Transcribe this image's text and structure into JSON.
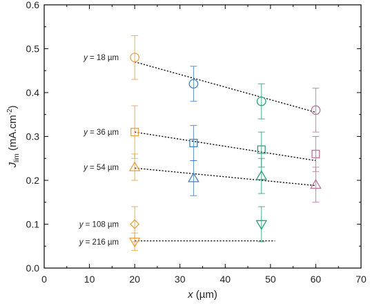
{
  "chart_data": {
    "type": "scatter",
    "xlabel": {
      "var": "x",
      "unit": "(µm)"
    },
    "ylabel": {
      "var": "J",
      "sub": "lim",
      "unit": "(mA.cm",
      "sup": "-2",
      "close": ")"
    },
    "xlim": [
      0,
      70
    ],
    "ylim": [
      0,
      0.6
    ],
    "xticks": [
      "0",
      "10",
      "20",
      "30",
      "40",
      "50",
      "60",
      "70"
    ],
    "yticks": [
      "0.0",
      "0.1",
      "0.2",
      "0.3",
      "0.4",
      "0.5",
      "0.6"
    ],
    "grid": false,
    "legend": "none",
    "x_colors": {
      "20": "#e8a33a",
      "33": "#3f7fbf",
      "48": "#2f9e7e",
      "60": "#c0709a"
    },
    "series": [
      {
        "label": {
          "var": "y",
          "text": " = 18 µm"
        },
        "marker": "circle",
        "points": [
          {
            "x": 20,
            "y": 0.48,
            "err": 0.05
          },
          {
            "x": 33,
            "y": 0.42,
            "err": 0.04
          },
          {
            "x": 48,
            "y": 0.38,
            "err": 0.04
          },
          {
            "x": 60,
            "y": 0.36,
            "err": 0.05
          }
        ],
        "fit": [
          [
            20,
            0.47
          ],
          [
            60,
            0.355
          ]
        ]
      },
      {
        "label": {
          "var": "y",
          "text": " = 36 µm"
        },
        "marker": "square",
        "points": [
          {
            "x": 20,
            "y": 0.31,
            "err": 0.06
          },
          {
            "x": 33,
            "y": 0.285,
            "err": 0.04
          },
          {
            "x": 48,
            "y": 0.27,
            "err": 0.04
          },
          {
            "x": 60,
            "y": 0.26,
            "err": 0.04
          }
        ],
        "fit": [
          [
            20,
            0.31
          ],
          [
            60,
            0.245
          ]
        ]
      },
      {
        "label": {
          "var": "y",
          "text": " = 54 µm"
        },
        "marker": "triangle-up",
        "points": [
          {
            "x": 20,
            "y": 0.23,
            "err": 0.03
          },
          {
            "x": 33,
            "y": 0.205,
            "err": 0.04
          },
          {
            "x": 48,
            "y": 0.21,
            "err": 0.04
          },
          {
            "x": 60,
            "y": 0.19,
            "err": 0.04
          }
        ],
        "fit": [
          [
            20,
            0.228
          ],
          [
            60,
            0.188
          ]
        ]
      },
      {
        "label": {
          "var": "y",
          "text": " = 108 µm"
        },
        "marker": "diamond",
        "points": [
          {
            "x": 20,
            "y": 0.1,
            "err": 0.04
          }
        ],
        "fit": null
      },
      {
        "label": {
          "var": "y",
          "text": " = 216 µm"
        },
        "marker": "triangle-down",
        "points": [
          {
            "x": 20,
            "y": 0.06,
            "err": 0.02
          },
          {
            "x": 48,
            "y": 0.1,
            "err": 0.04
          }
        ],
        "fit": [
          [
            20,
            0.062
          ],
          [
            51,
            0.062
          ]
        ]
      }
    ]
  }
}
